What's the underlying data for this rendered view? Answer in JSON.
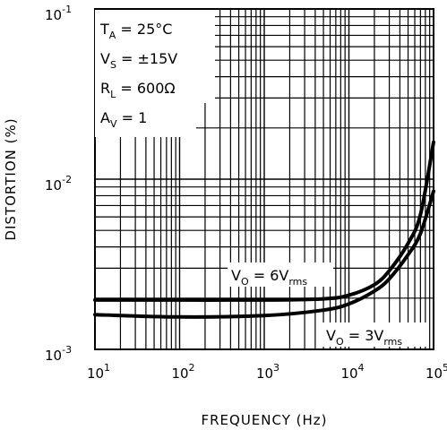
{
  "chart_data": {
    "type": "line",
    "title": "",
    "xlabel": "FREQUENCY (Hz)",
    "ylabel": "DISTORTION (%)",
    "xscale": "log",
    "yscale": "log",
    "xlim": [
      10,
      100000
    ],
    "ylim": [
      0.001,
      0.1
    ],
    "grid": true,
    "x_ticks": [
      {
        "base": "10",
        "exp": "1"
      },
      {
        "base": "10",
        "exp": "2"
      },
      {
        "base": "10",
        "exp": "3"
      },
      {
        "base": "10",
        "exp": "4"
      },
      {
        "base": "10",
        "exp": "5"
      }
    ],
    "y_ticks": [
      {
        "base": "10",
        "exp": "-3"
      },
      {
        "base": "10",
        "exp": "-2"
      },
      {
        "base": "10",
        "exp": "-1"
      }
    ],
    "conditions": [
      {
        "main": "T",
        "sub": "A",
        "rest": " = 25°C"
      },
      {
        "main": "V",
        "sub": "S",
        "rest": " = ±15V"
      },
      {
        "main": "R",
        "sub": "L",
        "rest": " = 600Ω"
      },
      {
        "main": "A",
        "sub": "V",
        "rest": " = 1"
      }
    ],
    "series": [
      {
        "label_main": "V",
        "label_sub": "O",
        "label_mid": " = 6V",
        "label_sub2": "rms",
        "x": [
          10,
          100,
          1000,
          5000,
          10000,
          20000,
          30000,
          50000,
          70000,
          100000
        ],
        "y": [
          0.00195,
          0.00195,
          0.00195,
          0.00198,
          0.00208,
          0.0024,
          0.0029,
          0.0042,
          0.0062,
          0.0165
        ]
      },
      {
        "label_main": "V",
        "label_sub": "O",
        "label_mid": " = 3V",
        "label_sub2": "rms",
        "x": [
          10,
          100,
          1000,
          5000,
          10000,
          20000,
          30000,
          50000,
          70000,
          100000
        ],
        "y": [
          0.0016,
          0.00155,
          0.00158,
          0.0017,
          0.00185,
          0.0022,
          0.0026,
          0.0036,
          0.0048,
          0.0085
        ]
      }
    ]
  }
}
